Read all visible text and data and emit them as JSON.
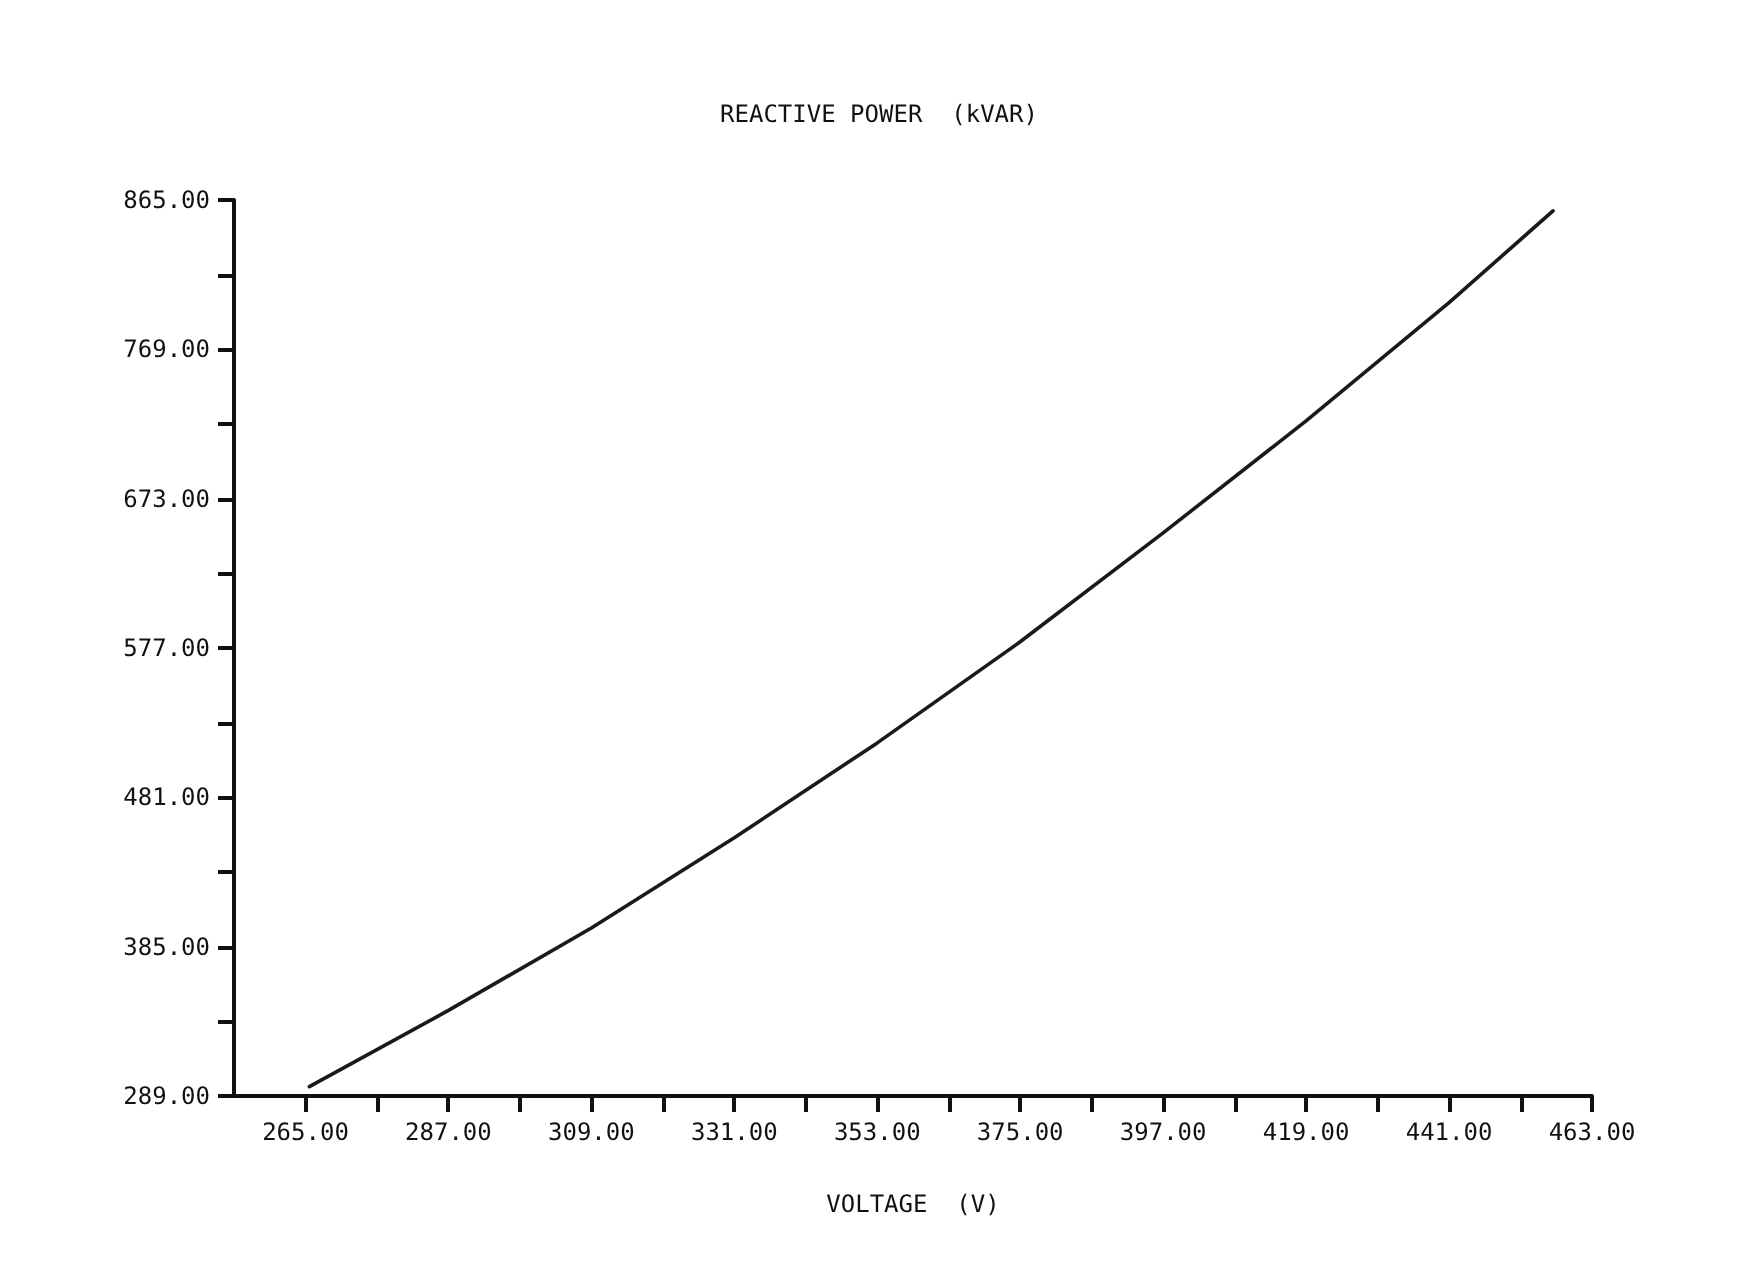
{
  "chart_data": {
    "type": "line",
    "title": "REACTIVE POWER  (kVAR)",
    "xlabel": "VOLTAGE  (V)",
    "x": [
      265.6,
      287,
      309,
      331,
      353,
      375,
      397,
      419,
      441,
      457
    ],
    "series": [
      {
        "color": "#1a1a1a",
        "values": [
          295,
          344,
          397,
          455,
          516,
          581,
          651,
          723,
          799,
          858
        ]
      }
    ],
    "xlim": [
      254,
      463
    ],
    "xticks": [
      {
        "value": 265,
        "label": "265.00"
      },
      {
        "value": 276,
        "label": null
      },
      {
        "value": 287,
        "label": "287.00"
      },
      {
        "value": 298,
        "label": null
      },
      {
        "value": 309,
        "label": "309.00"
      },
      {
        "value": 320,
        "label": null
      },
      {
        "value": 331,
        "label": "331.00"
      },
      {
        "value": 342,
        "label": null
      },
      {
        "value": 353,
        "label": "353.00"
      },
      {
        "value": 364,
        "label": null
      },
      {
        "value": 375,
        "label": "375.00"
      },
      {
        "value": 386,
        "label": null
      },
      {
        "value": 397,
        "label": "397.00"
      },
      {
        "value": 408,
        "label": null
      },
      {
        "value": 419,
        "label": "419.00"
      },
      {
        "value": 430,
        "label": null
      },
      {
        "value": 441,
        "label": "441.00"
      },
      {
        "value": 452,
        "label": null
      },
      {
        "value": 463,
        "label": "463.00"
      }
    ],
    "ylim": [
      289,
      865
    ],
    "yticks": [
      {
        "value": 289,
        "label": "289.00"
      },
      {
        "value": 337,
        "label": null
      },
      {
        "value": 385,
        "label": "385.00"
      },
      {
        "value": 433,
        "label": null
      },
      {
        "value": 481,
        "label": "481.00"
      },
      {
        "value": 529,
        "label": null
      },
      {
        "value": 577,
        "label": "577.00"
      },
      {
        "value": 625,
        "label": null
      },
      {
        "value": 673,
        "label": "673.00"
      },
      {
        "value": 721,
        "label": null
      },
      {
        "value": 769,
        "label": "769.00"
      },
      {
        "value": 817,
        "label": null
      },
      {
        "value": 865,
        "label": "865.00"
      }
    ],
    "marker": "none",
    "line_style": "solid"
  }
}
